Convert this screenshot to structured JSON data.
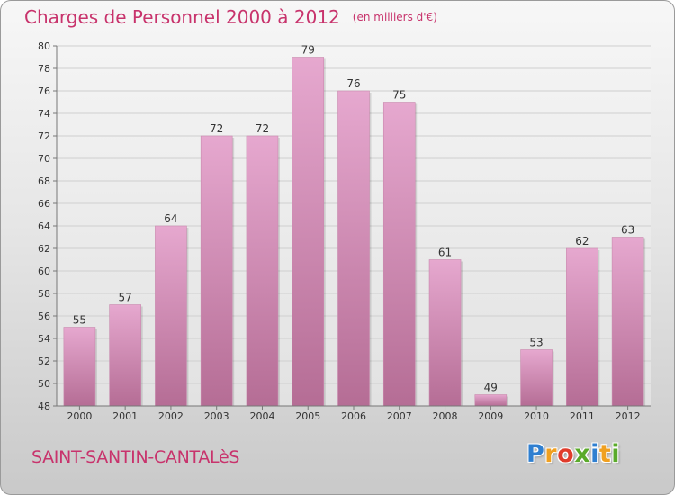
{
  "title": "Charges de Personnel 2000 à 2012",
  "subtitle": "(en milliers d'€)",
  "town": "SAINT-SANTIN-CANTALèS",
  "logo": {
    "letters": [
      "P",
      "r",
      "o",
      "x",
      "i",
      "t",
      "i"
    ],
    "colors": [
      "#2f7fd0",
      "#f0a020",
      "#e03c2c",
      "#5aaa2a",
      "#2f7fd0",
      "#f0a020",
      "#5aaa2a"
    ]
  },
  "colors": {
    "bar_top": "#e6a8cf",
    "bar_bottom": "#b56d95",
    "title": "#c8336c"
  },
  "chart_data": {
    "type": "bar",
    "categories": [
      "2000",
      "2001",
      "2002",
      "2003",
      "2004",
      "2005",
      "2006",
      "2007",
      "2008",
      "2009",
      "2010",
      "2011",
      "2012"
    ],
    "values": [
      55,
      57,
      64,
      72,
      72,
      79,
      76,
      75,
      61,
      49,
      53,
      62,
      63
    ],
    "data_labels": [
      "55",
      "57",
      "64",
      "72",
      "72",
      "79",
      "76",
      "75",
      "61",
      "49",
      "53",
      "62",
      "63"
    ],
    "ylim": [
      48,
      80
    ],
    "yticks": [
      "48",
      "50",
      "52",
      "54",
      "56",
      "58",
      "60",
      "62",
      "64",
      "66",
      "68",
      "70",
      "72",
      "74",
      "76",
      "78",
      "80"
    ],
    "grid": true
  }
}
